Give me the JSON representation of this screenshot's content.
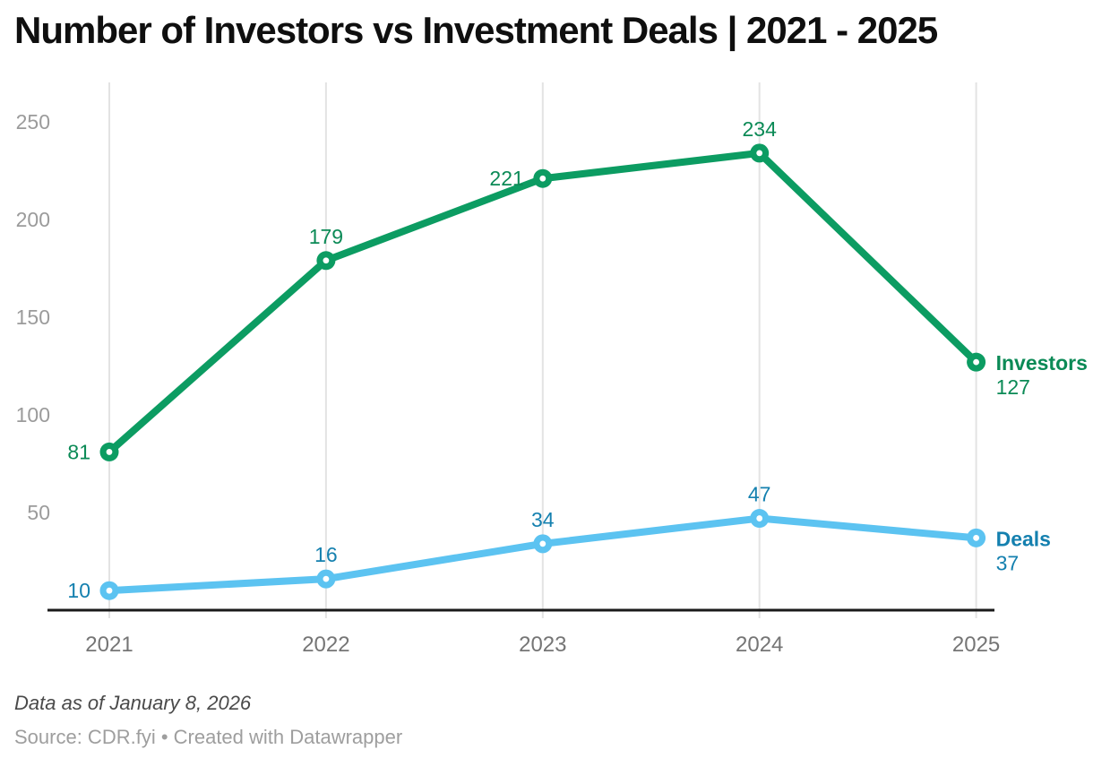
{
  "title": "Number of Investors vs Investment Deals | 2021 - 2025",
  "footer": {
    "notes": "Data as of January 8, 2026",
    "source": "Source: CDR.fyi • Created with Datawrapper"
  },
  "colors": {
    "grid": "#e3e3e3",
    "axis_line": "#1a1a1a",
    "x_tick_label": "#757575",
    "y_tick_label": "#9b9b9b",
    "title": "#0f0f0f",
    "notes": "#4a4a4a",
    "source": "#9e9e9e",
    "marker_center": "#ffffff"
  },
  "chart_data": {
    "type": "line",
    "title": "Number of Investors vs Investment Deals | 2021 - 2025",
    "categories": [
      "2021",
      "2022",
      "2023",
      "2024",
      "2025"
    ],
    "series": [
      {
        "name": "Investors",
        "values": [
          81,
          179,
          221,
          234,
          127
        ],
        "line_color": "#0c9c62",
        "label_color": "#0b8a56",
        "label_placements": [
          "left",
          "above",
          "left",
          "above",
          "end"
        ],
        "end_label": "Investors",
        "end_value": "127"
      },
      {
        "name": "Deals",
        "values": [
          10,
          16,
          34,
          47,
          37
        ],
        "line_color": "#5cc3f1",
        "label_color": "#1480af",
        "label_placements": [
          "left",
          "above",
          "above",
          "above",
          "end"
        ],
        "end_label": "Deals",
        "end_value": "37"
      }
    ],
    "y_ticks": [
      50,
      100,
      150,
      200,
      250
    ],
    "ylim": [
      0,
      270
    ],
    "xlabel": "",
    "ylabel": "",
    "grid": "vertical-only",
    "legend_position": "end-of-line",
    "point_labels_shown": true
  }
}
